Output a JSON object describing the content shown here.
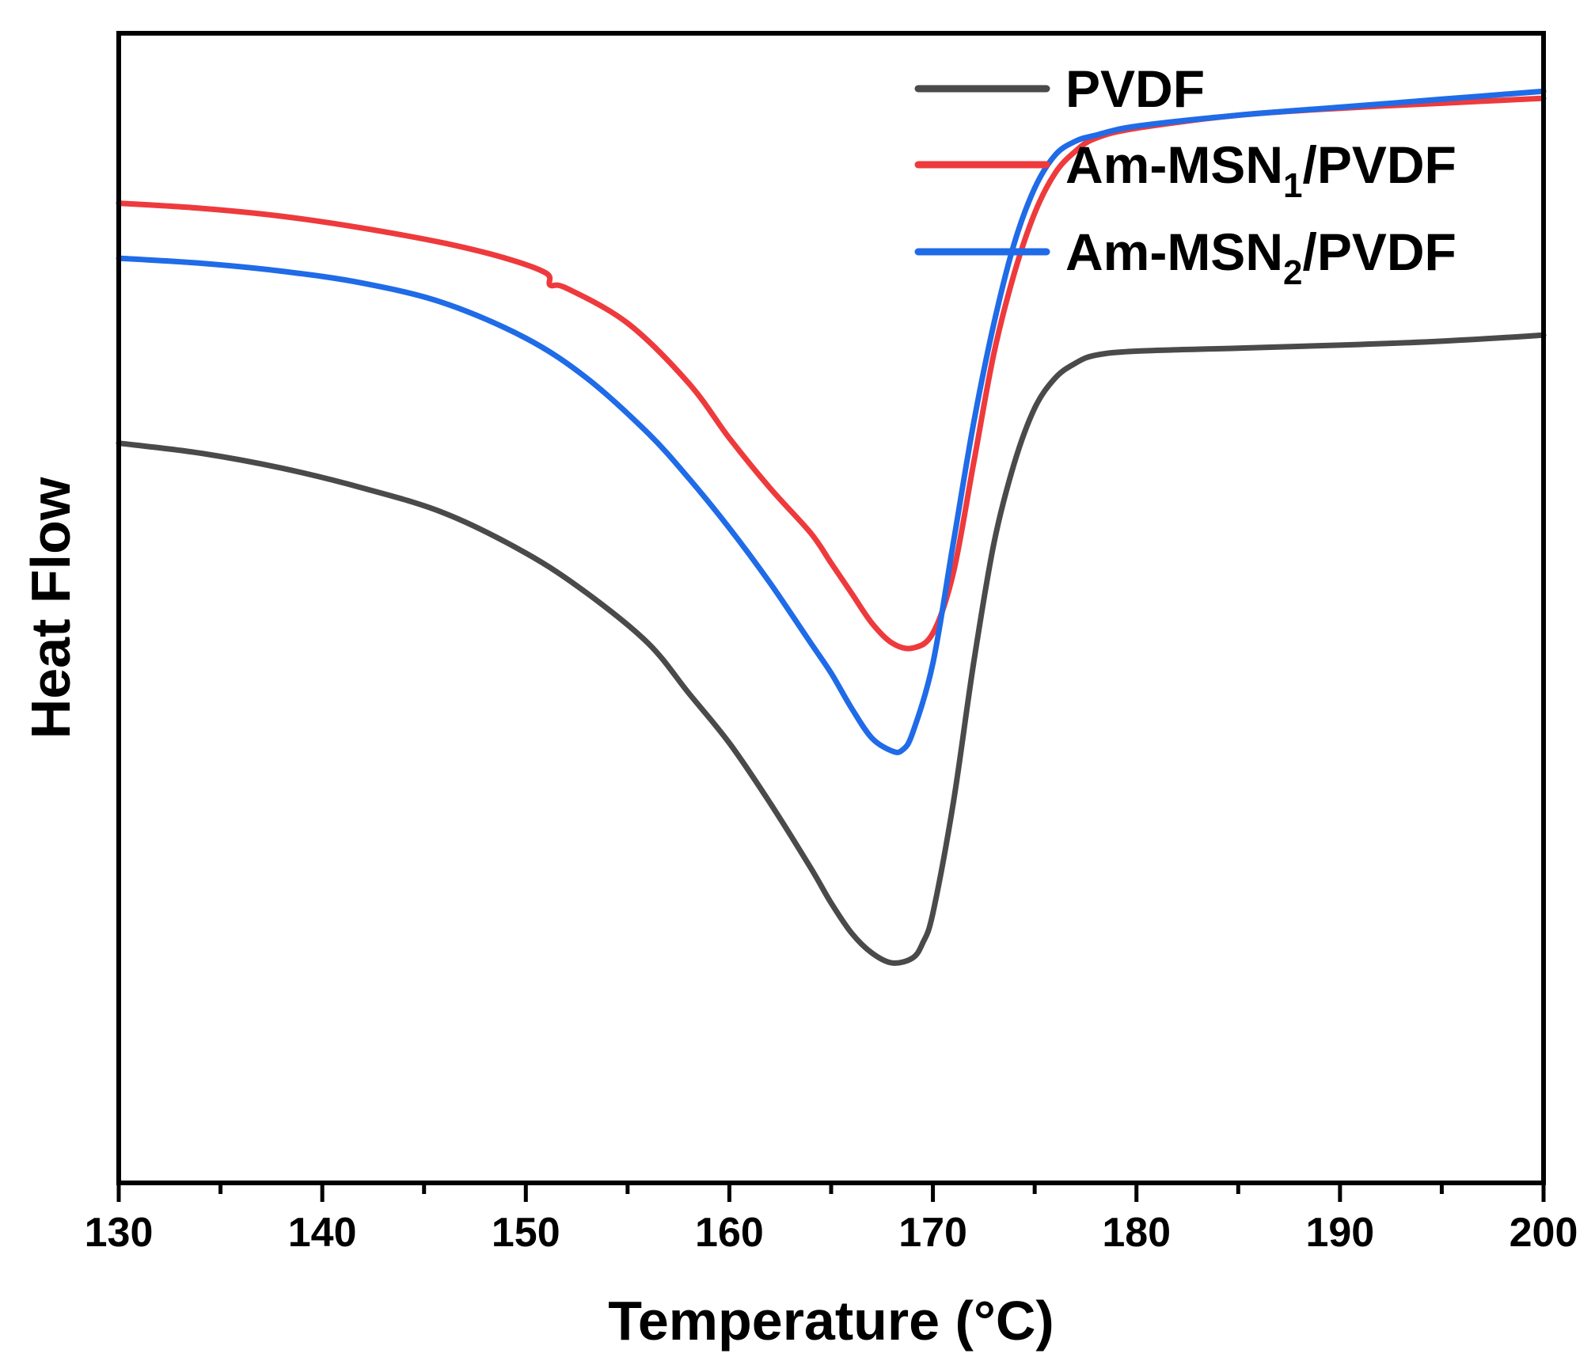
{
  "chart_data": {
    "type": "line",
    "title": "",
    "xlabel": "Temperature (°C)",
    "ylabel": "Heat Flow",
    "xlim": [
      130,
      200
    ],
    "ylim": [
      -10,
      1.5
    ],
    "x_ticks": [
      "130",
      "140",
      "150",
      "160",
      "170",
      "180",
      "190",
      "200"
    ],
    "y_ticks_shown": false,
    "grid": false,
    "legend_position": "top-right",
    "series": [
      {
        "name": "PVDF",
        "label_main": "PVDF",
        "label_sub": "",
        "label_tail": "",
        "color": "#4a4a4a",
        "x": [
          130,
          134,
          138,
          142,
          146,
          150,
          153,
          156,
          158,
          160,
          162,
          164,
          165,
          166,
          167,
          168,
          169,
          169.5,
          170,
          171,
          172,
          173,
          174,
          175,
          176,
          177,
          178,
          180,
          185,
          190,
          195,
          200
        ],
        "y": [
          -2.6,
          -2.7,
          -2.85,
          -3.05,
          -3.3,
          -3.7,
          -4.1,
          -4.6,
          -5.1,
          -5.6,
          -6.2,
          -6.85,
          -7.2,
          -7.5,
          -7.7,
          -7.8,
          -7.75,
          -7.6,
          -7.3,
          -6.2,
          -4.8,
          -3.6,
          -2.8,
          -2.25,
          -1.95,
          -1.8,
          -1.72,
          -1.68,
          -1.65,
          -1.62,
          -1.58,
          -1.52
        ]
      },
      {
        "name": "Am-MSN1/PVDF",
        "label_main": "Am-MSN",
        "label_sub": "1",
        "label_tail": "/PVDF",
        "color": "#ee3a3c",
        "x": [
          130,
          134,
          138,
          142,
          146,
          149,
          151,
          151.2,
          152,
          155,
          158,
          160,
          162,
          164,
          165,
          166,
          167,
          168,
          169,
          170,
          171,
          172,
          173,
          174,
          175,
          176,
          177,
          178,
          180,
          185,
          190,
          195,
          200
        ],
        "y": [
          -0.2,
          -0.25,
          -0.33,
          -0.45,
          -0.6,
          -0.75,
          -0.9,
          -1.02,
          -1.05,
          -1.4,
          -2.0,
          -2.55,
          -3.05,
          -3.5,
          -3.8,
          -4.1,
          -4.4,
          -4.6,
          -4.65,
          -4.5,
          -3.9,
          -2.8,
          -1.7,
          -0.9,
          -0.3,
          0.1,
          0.32,
          0.45,
          0.55,
          0.68,
          0.75,
          0.8,
          0.85
        ]
      },
      {
        "name": "Am-MSN2/PVDF",
        "label_main": "Am-MSN",
        "label_sub": "2",
        "label_tail": "/PVDF",
        "color": "#1f6be8",
        "x": [
          130,
          134,
          138,
          142,
          146,
          150,
          153,
          156,
          158,
          160,
          162,
          164,
          165,
          166,
          167,
          168,
          168.5,
          169,
          170,
          171,
          172,
          173,
          174,
          175,
          176,
          177,
          178,
          180,
          185,
          190,
          195,
          200
        ],
        "y": [
          -0.75,
          -0.8,
          -0.88,
          -1.0,
          -1.2,
          -1.55,
          -1.95,
          -2.5,
          -2.95,
          -3.45,
          -4.0,
          -4.6,
          -4.9,
          -5.25,
          -5.55,
          -5.68,
          -5.67,
          -5.5,
          -4.8,
          -3.6,
          -2.4,
          -1.4,
          -0.6,
          -0.05,
          0.28,
          0.42,
          0.48,
          0.57,
          0.68,
          0.76,
          0.84,
          0.92
        ]
      }
    ]
  }
}
